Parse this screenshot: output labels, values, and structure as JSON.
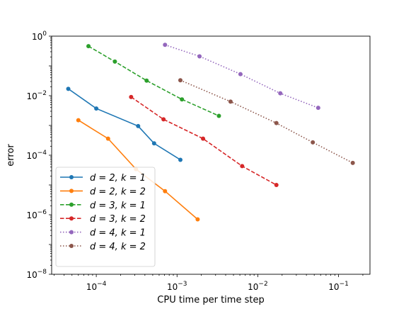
{
  "chart_data": {
    "type": "line",
    "xlabel": "CPU time per time step",
    "ylabel": "error",
    "xscale": "log",
    "yscale": "log",
    "xlim": [
      2.8e-05,
      0.245
    ],
    "ylim": [
      1e-08,
      1
    ],
    "grid": false,
    "legend_position": "lower-left",
    "x_ticks": [
      {
        "base": "10",
        "exp": "−4",
        "value": 0.0001
      },
      {
        "base": "10",
        "exp": "−3",
        "value": 0.001
      },
      {
        "base": "10",
        "exp": "−2",
        "value": 0.01
      },
      {
        "base": "10",
        "exp": "−1",
        "value": 0.1
      }
    ],
    "y_ticks": [
      {
        "base": "10",
        "exp": "0",
        "value": 1
      },
      {
        "base": "10",
        "exp": "−2",
        "value": 0.01
      },
      {
        "base": "10",
        "exp": "−4",
        "value": 0.0001
      },
      {
        "base": "10",
        "exp": "−6",
        "value": 1e-06
      },
      {
        "base": "10",
        "exp": "−8",
        "value": 1e-08
      }
    ],
    "series": [
      {
        "d": "d = 2",
        "k": "k = 1",
        "color": "#1f77b4",
        "style": "solid",
        "x": [
          4.5e-05,
          0.0001,
          0.00033,
          0.00052,
          0.0011
        ],
        "y": [
          0.017,
          0.0037,
          0.00095,
          0.00025,
          7e-05
        ]
      },
      {
        "d": "d = 2",
        "k": "k = 2",
        "color": "#ff7f0e",
        "style": "solid",
        "x": [
          6e-05,
          0.00014,
          0.00031,
          0.00071,
          0.0018
        ],
        "y": [
          0.0015,
          0.00036,
          3.4e-05,
          6.2e-06,
          7e-07
        ]
      },
      {
        "d": "d = 3",
        "k": "k = 1",
        "color": "#2ca02c",
        "style": "dashed",
        "x": [
          8e-05,
          0.00017,
          0.00042,
          0.00115,
          0.0033
        ],
        "y": [
          0.46,
          0.14,
          0.032,
          0.0075,
          0.0021
        ]
      },
      {
        "d": "d = 3",
        "k": "k = 2",
        "color": "#d62728",
        "style": "dashed",
        "x": [
          0.00027,
          0.00068,
          0.0021,
          0.0064,
          0.017
        ],
        "y": [
          0.009,
          0.0016,
          0.00036,
          4.3e-05,
          1e-05
        ]
      },
      {
        "d": "d = 4",
        "k": "k = 1",
        "color": "#9467bd",
        "style": "dotted",
        "x": [
          0.00071,
          0.0019,
          0.0061,
          0.019,
          0.056
        ],
        "y": [
          0.51,
          0.21,
          0.053,
          0.012,
          0.0039
        ]
      },
      {
        "d": "d = 4",
        "k": "k = 2",
        "color": "#8c564b",
        "style": "dotted",
        "x": [
          0.0011,
          0.0046,
          0.017,
          0.048,
          0.15
        ],
        "y": [
          0.033,
          0.0063,
          0.0012,
          0.00027,
          5.5e-05
        ]
      }
    ]
  }
}
